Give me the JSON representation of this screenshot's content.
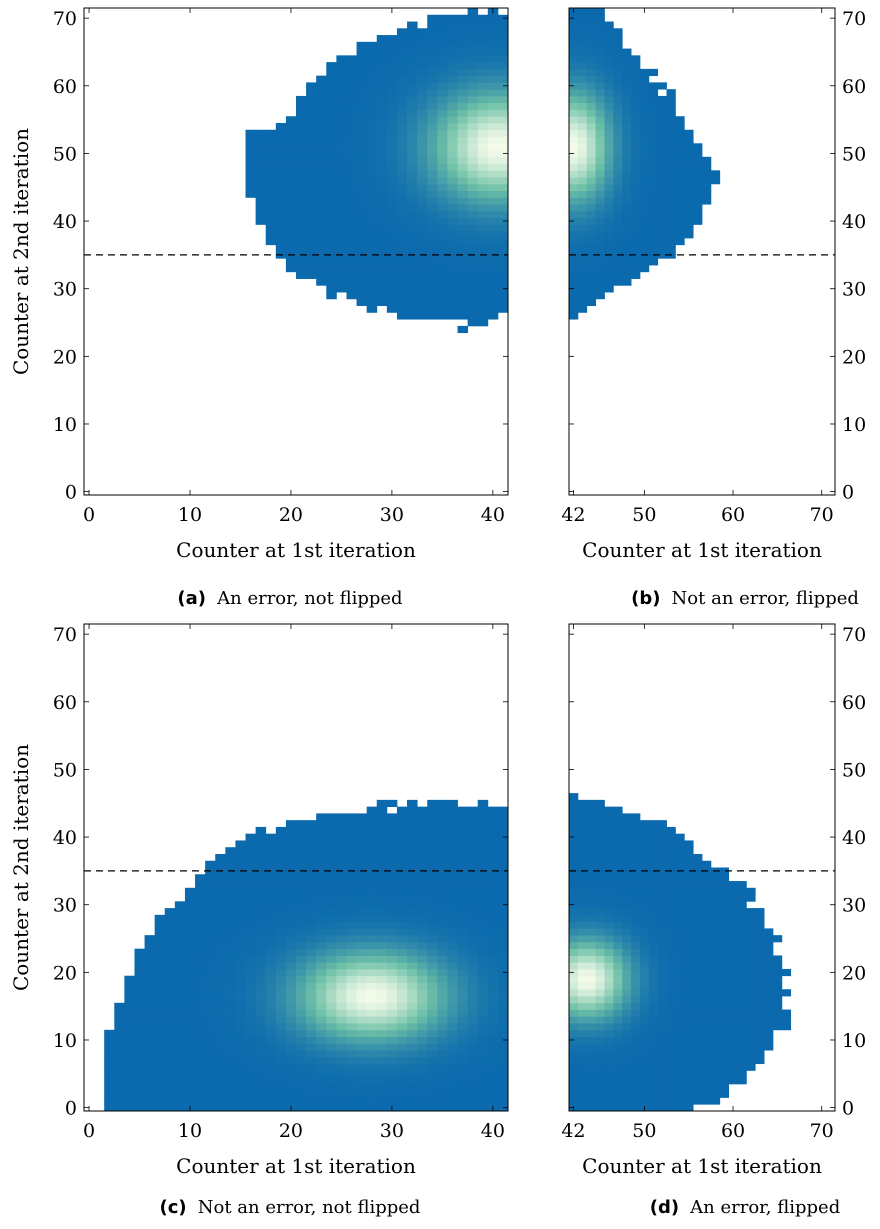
{
  "colors": {
    "base": "#0b6aad",
    "mid": "#6bbfa6",
    "peak": "#f4fbe9",
    "frame": "#000000",
    "threshold": "#000000"
  },
  "chart_data": [
    {
      "id": "a",
      "type": "heatmap",
      "caption_tag": "(a)",
      "caption_text": "An error, not flipped",
      "xlabel": "Counter at 1st iteration",
      "ylabel": "Counter at 2nd iteration",
      "xlim": [
        -0.5,
        41.5
      ],
      "ylim": [
        -0.5,
        71.5
      ],
      "xticks": [
        0,
        10,
        20,
        30,
        40
      ],
      "yticks": [
        0,
        10,
        20,
        30,
        40,
        50,
        60,
        70
      ],
      "threshold_y": 35,
      "peak": {
        "x": 40.5,
        "y": 51,
        "sx": 4.5,
        "sy": 5.5
      },
      "outline": [
        [
          16,
          43
        ],
        [
          18,
          36
        ],
        [
          20,
          33
        ],
        [
          24,
          29
        ],
        [
          28,
          27
        ],
        [
          34,
          25
        ],
        [
          38,
          24
        ],
        [
          41,
          26
        ]
      ],
      "upper_outline": [
        [
          18,
          53
        ],
        [
          20,
          56
        ],
        [
          22,
          61
        ],
        [
          26,
          65
        ],
        [
          30,
          68
        ],
        [
          34,
          70
        ],
        [
          38,
          71
        ],
        [
          41,
          71
        ]
      ]
    },
    {
      "id": "b",
      "type": "heatmap",
      "caption_tag": "(b)",
      "caption_text": "Not an error, flipped",
      "xlabel": "Counter at 1st iteration",
      "ylabel": "",
      "xlim": [
        41.5,
        71.5
      ],
      "ylim": [
        -0.5,
        71.5
      ],
      "xticks": [
        42,
        50,
        60,
        70
      ],
      "yticks": [
        0,
        10,
        20,
        30,
        40,
        50,
        60,
        70
      ],
      "threshold_y": 35,
      "peak": {
        "x": 42,
        "y": 51,
        "sx": 2.8,
        "sy": 5.5
      },
      "left_edge": [
        [
          26,
          42
        ],
        [
          30,
          47
        ],
        [
          35,
          53
        ],
        [
          40,
          56
        ],
        [
          46,
          58
        ],
        [
          52,
          56
        ],
        [
          60,
          52
        ],
        [
          66,
          48
        ],
        [
          71,
          45
        ]
      ]
    },
    {
      "id": "c",
      "type": "heatmap",
      "caption_tag": "(c)",
      "caption_text": "Not an error, not flipped",
      "xlabel": "Counter at 1st iteration",
      "ylabel": "Counter at 2nd iteration",
      "xlim": [
        -0.5,
        41.5
      ],
      "ylim": [
        -0.5,
        71.5
      ],
      "xticks": [
        0,
        10,
        20,
        30,
        40
      ],
      "yticks": [
        0,
        10,
        20,
        30,
        40,
        50,
        60,
        70
      ],
      "threshold_y": 35,
      "peak": {
        "x": 28,
        "y": 16.5,
        "sx": 5.0,
        "sy": 4.5
      },
      "outline": [
        [
          2,
          12
        ],
        [
          4,
          20
        ],
        [
          6,
          26
        ],
        [
          9,
          31
        ],
        [
          12,
          36
        ],
        [
          16,
          40
        ],
        [
          20,
          42
        ],
        [
          26,
          44
        ],
        [
          32,
          45
        ],
        [
          38,
          45
        ],
        [
          41,
          45
        ]
      ]
    },
    {
      "id": "d",
      "type": "heatmap",
      "caption_tag": "(d)",
      "caption_text": "An error, flipped",
      "xlabel": "Counter at 1st iteration",
      "ylabel": "",
      "xlim": [
        41.5,
        71.5
      ],
      "ylim": [
        -0.5,
        71.5
      ],
      "xticks": [
        42,
        50,
        60,
        70
      ],
      "yticks": [
        0,
        10,
        20,
        30,
        40,
        50,
        60,
        70
      ],
      "threshold_y": 35,
      "peak": {
        "x": 43.5,
        "y": 19,
        "sx": 3.2,
        "sy": 4.0
      },
      "right_edge": [
        [
          46,
          43
        ],
        [
          44,
          47
        ],
        [
          42,
          52
        ],
        [
          38,
          56
        ],
        [
          35,
          59
        ],
        [
          32,
          62
        ],
        [
          26,
          64
        ],
        [
          20,
          66
        ],
        [
          14,
          66
        ],
        [
          10,
          65
        ],
        [
          5,
          62
        ],
        [
          1,
          58
        ],
        [
          0,
          56
        ]
      ]
    }
  ]
}
